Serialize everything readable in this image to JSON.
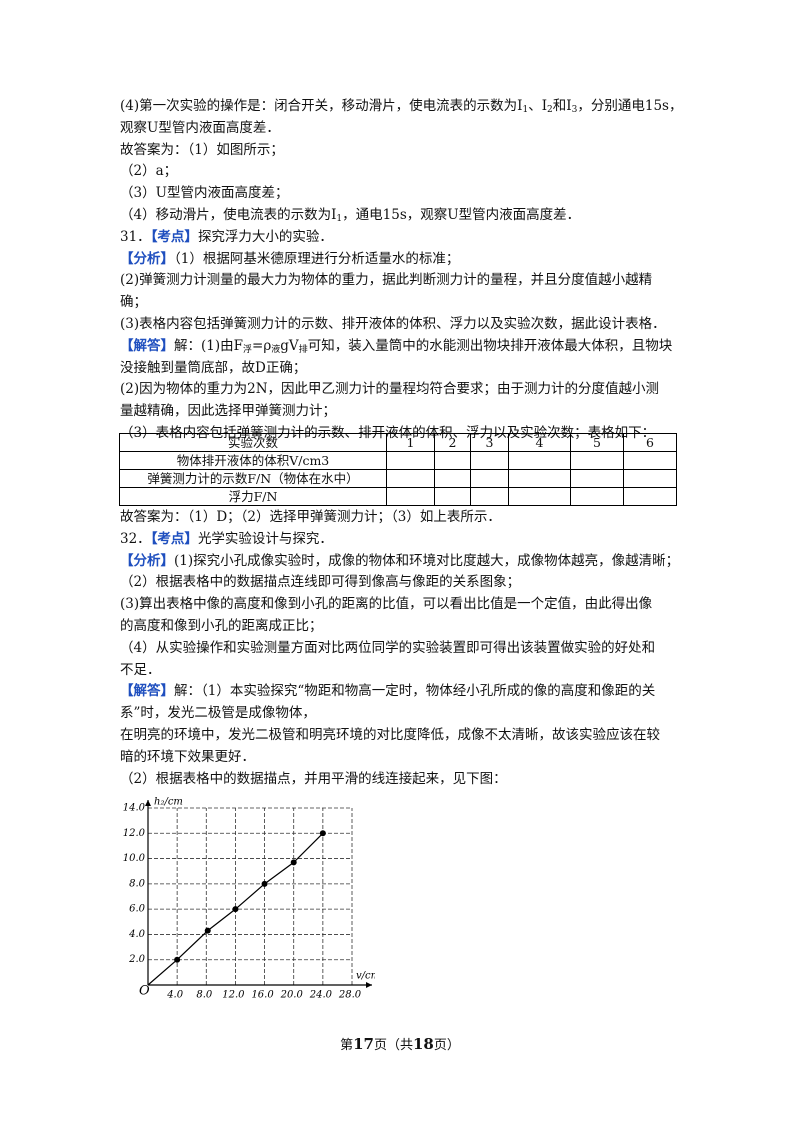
{
  "lines1": [
    [
      "(4)第一次实验的操作是：闭合开关，移动滑片，使电流表的示数为I",
      {
        "sub": "1"
      },
      "、I",
      {
        "sub": "2"
      },
      "和I",
      {
        "sub": "3"
      },
      "，分别通电15s，"
    ],
    [
      "观察U型管内液面高度差．"
    ],
    [
      "故答案为：（1）如图所示；"
    ],
    [
      "（2）a；"
    ],
    [
      "（3）U型管内液面高度差；"
    ],
    [
      "（4）移动滑片，使电流表的示数为I",
      {
        "sub": "1"
      },
      "，通电15s，观察U型管内液面高度差．"
    ],
    [
      "31．",
      {
        "tag": "【考点】"
      },
      "探究浮力大小的实验．"
    ],
    [
      {
        "tag": "【分析】"
      },
      "（1）根据阿基米德原理进行分析适量水的标准；"
    ],
    [
      "(2)弹簧测力计测量的最大力为物体的重力，据此判断测力计的量程，并且分度值越小越精"
    ],
    [
      "确；"
    ],
    [
      "(3)表格内容包括弹簧测力计的示数、排开液体的体积、浮力以及实验次数，据此设计表格．"
    ],
    [
      {
        "tag": "【解答】"
      },
      "解：(1)由F",
      {
        "sub": "浮"
      },
      "=ρ",
      {
        "sub": "液"
      },
      "gV",
      {
        "sub": "排"
      },
      "可知，装入量筒中的水能测出物块排开液体最大体积，且物块"
    ],
    [
      "没接触到量筒底部，故D正确；"
    ],
    [
      "(2)因为物体的重力为2N，因此甲乙测力计的量程均符合要求；由于测力计的分度值越小测"
    ],
    [
      "量越精确，因此选择甲弹簧测力计；"
    ],
    [
      "（3）表格内容包括弹簧测力计的示数、排开液体的体积、浮力以及实验次数；表格如下："
    ]
  ],
  "table": {
    "header": [
      "实验次数",
      "1",
      "2",
      "3",
      "4",
      "5",
      "6"
    ],
    "rows": [
      "物体排开液体的体积V/cm3",
      "弹簧测力计的示数F/N（物体在水中）",
      "浮力F/N"
    ]
  },
  "lines2": [
    [
      "故答案为：（1）D；（2）选择甲弹簧测力计；（3）如上表所示．"
    ],
    [
      "32．",
      {
        "tag": "【考点】"
      },
      "光学实验设计与探究．"
    ],
    [
      {
        "tag": "【分析】"
      },
      "(1)探究小孔成像实验时，成像的物体和环境对比度越大，成像物体越亮，像越清晰；"
    ],
    [
      "（2）根据表格中的数据描点连线即可得到像高与像距的关系图象；"
    ],
    [
      "(3)算出表格中像的高度和像到小孔的距离的比值，可以看出比值是一个定值，由此得出像"
    ],
    [
      "的高度和像到小孔的距离成正比；"
    ],
    [
      "（4）从实验操作和实验测量方面对比两位同学的实验装置即可得出该装置做实验的好处和"
    ],
    [
      "不足．"
    ],
    [
      {
        "tag": "【解答】"
      },
      "解：（1）本实验探究“物距和物高一定时，物体经小孔所成的像的高度和像距的关"
    ],
    [
      "系”时，发光二极管是成像物体，"
    ],
    [
      "在明亮的环境中，发光二极管和明亮环境的对比度降低，成像不太清晰，故该实验应该在较"
    ],
    [
      "暗的环境下效果更好．"
    ],
    [
      "（2）根据表格中的数据描点，并用平滑的线连接起来，见下图："
    ]
  ],
  "chart_data": {
    "type": "line",
    "x_label": "v/cm",
    "y_label": "h₂/cm",
    "origin_label": "O",
    "x": [
      4,
      8.2,
      12,
      16,
      20,
      24
    ],
    "values": [
      2,
      4.3,
      6,
      8,
      9.7,
      12
    ],
    "color": "#000000",
    "xlim": [
      0,
      28
    ],
    "ylim": [
      0,
      14
    ],
    "xticks": [
      {
        "value": 4,
        "label": "4.0"
      },
      {
        "value": 8,
        "label": "8.0"
      },
      {
        "value": 12,
        "label": "12.0"
      },
      {
        "value": 16,
        "label": "16.0"
      },
      {
        "value": 20,
        "label": "20.0"
      },
      {
        "value": 24,
        "label": "24.0"
      },
      {
        "value": 28,
        "label": "28.0"
      }
    ],
    "yticks": [
      {
        "value": 2,
        "label": "2.0"
      },
      {
        "value": 4,
        "label": "4.0"
      },
      {
        "value": 6,
        "label": "6.0"
      },
      {
        "value": 8,
        "label": "8.0"
      },
      {
        "value": 10,
        "label": "10.0"
      },
      {
        "value": 12,
        "label": "12.0"
      },
      {
        "value": 14,
        "label": "14.0"
      }
    ],
    "grid": true
  },
  "footer": [
    "第",
    {
      "b": "17"
    },
    "页（共",
    {
      "b": "18"
    },
    "页）"
  ]
}
